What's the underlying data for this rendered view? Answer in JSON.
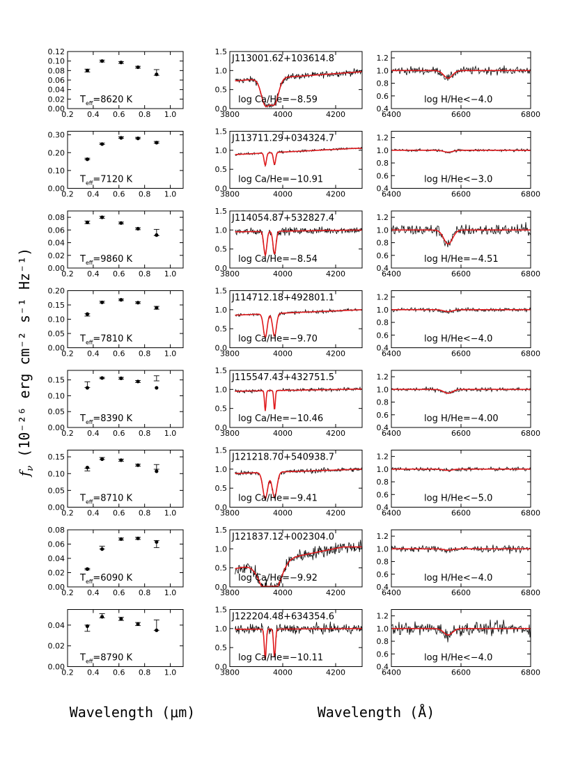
{
  "figure": {
    "y_label_prefix": "f",
    "y_label_sub": "ν",
    "y_label_units": "(10⁻²⁶ erg cm⁻² s⁻¹ Hz⁻¹)",
    "x_label_left": "Wavelength (μm)",
    "x_label_right": "Wavelength (Å)"
  },
  "colors": {
    "model": "#e0191c",
    "data": "#000000"
  },
  "chart_data": [
    {
      "type": "scatter",
      "panel": "photometry",
      "row": 1,
      "annotation": "Teff=8620 K",
      "teff": 8620,
      "xlim": [
        0.2,
        1.1
      ],
      "ylim": [
        0,
        0.12
      ],
      "xticks": [
        "0.2",
        "0.4",
        "0.6",
        "0.8",
        "1.0"
      ],
      "yticks": [
        "0.00",
        "0.02",
        "0.04",
        "0.06",
        "0.08",
        "0.10",
        "0.12"
      ],
      "points": [
        {
          "x": 0.354,
          "y": 0.08
        },
        {
          "x": 0.469,
          "y": 0.1
        },
        {
          "x": 0.617,
          "y": 0.097
        },
        {
          "x": 0.748,
          "y": 0.087
        },
        {
          "x": 0.893,
          "y": 0.072
        }
      ],
      "errorbars": [
        {
          "x": 0.354,
          "y": 0.08,
          "err": 0.003
        },
        {
          "x": 0.469,
          "y": 0.1,
          "err": 0.002
        },
        {
          "x": 0.617,
          "y": 0.097,
          "err": 0.002
        },
        {
          "x": 0.748,
          "y": 0.087,
          "err": 0.002
        },
        {
          "x": 0.893,
          "y": 0.076,
          "err": 0.006
        }
      ]
    },
    {
      "type": "line",
      "panel": "ca-region",
      "row": 1,
      "label": "J113001.62+103614.8",
      "annotation": "log Ca/He=−8.59",
      "xlim": [
        3800,
        4300
      ],
      "ylim": [
        0,
        1.5
      ],
      "xticks": [
        "3800",
        "4000",
        "4200"
      ],
      "yticks": [
        "0.0",
        "0.5",
        "1.0",
        "1.5"
      ],
      "line_depth": 0.85,
      "line_width": 22,
      "noise": 0.08,
      "slope": 0.25,
      "start": 0.72
    },
    {
      "type": "line",
      "panel": "h-alpha",
      "row": 1,
      "annotation": "log H/He<−4.0",
      "xlim": [
        6400,
        6800
      ],
      "ylim": [
        0.4,
        1.3
      ],
      "xticks": [
        "6400",
        "6600",
        "6800"
      ],
      "yticks": [
        "0.4",
        "0.6",
        "0.8",
        "1.0",
        "1.2"
      ],
      "line_depth": 0.12,
      "noise": 0.06
    },
    {
      "type": "scatter",
      "panel": "photometry",
      "row": 2,
      "annotation": "Teff=7120 K",
      "teff": 7120,
      "xlim": [
        0.2,
        1.1
      ],
      "ylim": [
        0,
        0.32
      ],
      "xticks": [
        "0.2",
        "0.4",
        "0.6",
        "0.8",
        "1.0"
      ],
      "yticks": [
        "0.00",
        "0.10",
        "0.20",
        "0.30"
      ],
      "points": [
        {
          "x": 0.354,
          "y": 0.163
        },
        {
          "x": 0.469,
          "y": 0.248
        },
        {
          "x": 0.617,
          "y": 0.283
        },
        {
          "x": 0.748,
          "y": 0.28
        },
        {
          "x": 0.893,
          "y": 0.256
        }
      ],
      "errorbars": [
        {
          "x": 0.354,
          "y": 0.165,
          "err": 0.004
        },
        {
          "x": 0.469,
          "y": 0.25,
          "err": 0.004
        },
        {
          "x": 0.617,
          "y": 0.285,
          "err": 0.004
        },
        {
          "x": 0.748,
          "y": 0.282,
          "err": 0.004
        },
        {
          "x": 0.893,
          "y": 0.258,
          "err": 0.005
        }
      ]
    },
    {
      "type": "line",
      "panel": "ca-region",
      "row": 2,
      "label": "J113711.29+034324.7",
      "annotation": "log Ca/He=−10.91",
      "xlim": [
        3800,
        4300
      ],
      "ylim": [
        0,
        1.5
      ],
      "xticks": [
        "3800",
        "4000",
        "4200"
      ],
      "yticks": [
        "0.0",
        "0.5",
        "1.0",
        "1.5"
      ],
      "line_depth": 0.35,
      "line_width": 6,
      "noise": 0.03,
      "slope": 0.18,
      "start": 0.88
    },
    {
      "type": "line",
      "panel": "h-alpha",
      "row": 2,
      "annotation": "log H/He<−3.0",
      "xlim": [
        6400,
        6800
      ],
      "ylim": [
        0.4,
        1.3
      ],
      "xticks": [
        "6400",
        "6600",
        "6800"
      ],
      "yticks": [
        "0.4",
        "0.6",
        "0.8",
        "1.0",
        "1.2"
      ],
      "line_depth": 0.03,
      "noise": 0.02
    },
    {
      "type": "scatter",
      "panel": "photometry",
      "row": 3,
      "annotation": "Teff=9860 K",
      "teff": 9860,
      "xlim": [
        0.2,
        1.1
      ],
      "ylim": [
        0,
        0.09
      ],
      "xticks": [
        "0.2",
        "0.4",
        "0.6",
        "0.8",
        "1.0"
      ],
      "yticks": [
        "0.00",
        "0.02",
        "0.04",
        "0.06",
        "0.08"
      ],
      "points": [
        {
          "x": 0.354,
          "y": 0.072
        },
        {
          "x": 0.469,
          "y": 0.08
        },
        {
          "x": 0.617,
          "y": 0.071
        },
        {
          "x": 0.748,
          "y": 0.062
        },
        {
          "x": 0.893,
          "y": 0.052
        }
      ],
      "errorbars": [
        {
          "x": 0.354,
          "y": 0.072,
          "err": 0.002
        },
        {
          "x": 0.469,
          "y": 0.08,
          "err": 0.0015
        },
        {
          "x": 0.617,
          "y": 0.071,
          "err": 0.0015
        },
        {
          "x": 0.748,
          "y": 0.062,
          "err": 0.0015
        },
        {
          "x": 0.893,
          "y": 0.056,
          "err": 0.005
        }
      ]
    },
    {
      "type": "line",
      "panel": "ca-region",
      "row": 3,
      "label": "J114054.87+532827.4",
      "annotation": "log Ca/He=−8.54",
      "xlim": [
        3800,
        4300
      ],
      "ylim": [
        0,
        1.5
      ],
      "xticks": [
        "3800",
        "4000",
        "4200"
      ],
      "yticks": [
        "0.0",
        "0.5",
        "1.0",
        "1.5"
      ],
      "line_depth": 0.65,
      "line_width": 8,
      "noise": 0.09,
      "slope": 0.05,
      "start": 0.95
    },
    {
      "type": "line",
      "panel": "h-alpha",
      "row": 3,
      "annotation": "log H/He=−4.51",
      "xlim": [
        6400,
        6800
      ],
      "ylim": [
        0.4,
        1.3
      ],
      "xticks": [
        "6400",
        "6600",
        "6800"
      ],
      "yticks": [
        "0.4",
        "0.6",
        "0.8",
        "1.0",
        "1.2"
      ],
      "line_depth": 0.22,
      "noise": 0.09
    },
    {
      "type": "scatter",
      "panel": "photometry",
      "row": 4,
      "annotation": "Teff=7810 K",
      "teff": 7810,
      "xlim": [
        0.2,
        1.1
      ],
      "ylim": [
        0,
        0.2
      ],
      "xticks": [
        "0.2",
        "0.4",
        "0.6",
        "0.8",
        "1.0"
      ],
      "yticks": [
        "0.00",
        "0.05",
        "0.10",
        "0.15",
        "0.20"
      ],
      "points": [
        {
          "x": 0.354,
          "y": 0.118
        },
        {
          "x": 0.469,
          "y": 0.159
        },
        {
          "x": 0.617,
          "y": 0.168
        },
        {
          "x": 0.748,
          "y": 0.158
        },
        {
          "x": 0.893,
          "y": 0.14
        }
      ],
      "errorbars": [
        {
          "x": 0.354,
          "y": 0.115,
          "err": 0.004
        },
        {
          "x": 0.469,
          "y": 0.16,
          "err": 0.003
        },
        {
          "x": 0.617,
          "y": 0.168,
          "err": 0.003
        },
        {
          "x": 0.748,
          "y": 0.158,
          "err": 0.003
        },
        {
          "x": 0.893,
          "y": 0.14,
          "err": 0.005
        }
      ]
    },
    {
      "type": "line",
      "panel": "ca-region",
      "row": 4,
      "label": "J114712.18+492801.1",
      "annotation": "log Ca/He=−9.70",
      "xlim": [
        3800,
        4300
      ],
      "ylim": [
        0,
        1.5
      ],
      "xticks": [
        "3800",
        "4000",
        "4200"
      ],
      "yticks": [
        "0.0",
        "0.5",
        "1.0",
        "1.5"
      ],
      "line_depth": 0.7,
      "line_width": 10,
      "noise": 0.04,
      "slope": 0.15,
      "start": 0.85
    },
    {
      "type": "line",
      "panel": "h-alpha",
      "row": 4,
      "annotation": "log H/He<−4.0",
      "xlim": [
        6400,
        6800
      ],
      "ylim": [
        0.4,
        1.3
      ],
      "xticks": [
        "6400",
        "6600",
        "6800"
      ],
      "yticks": [
        "0.4",
        "0.6",
        "0.8",
        "1.0",
        "1.2"
      ],
      "line_depth": 0.03,
      "noise": 0.03
    },
    {
      "type": "scatter",
      "panel": "photometry",
      "row": 5,
      "annotation": "Teff=8390 K",
      "teff": 8390,
      "xlim": [
        0.2,
        1.1
      ],
      "ylim": [
        0,
        0.18
      ],
      "xticks": [
        "0.2",
        "0.4",
        "0.6",
        "0.8",
        "1.0"
      ],
      "yticks": [
        "0.00",
        "0.05",
        "0.10",
        "0.15"
      ],
      "points": [
        {
          "x": 0.354,
          "y": 0.125
        },
        {
          "x": 0.469,
          "y": 0.156
        },
        {
          "x": 0.617,
          "y": 0.155
        },
        {
          "x": 0.748,
          "y": 0.145
        },
        {
          "x": 0.893,
          "y": 0.125
        }
      ],
      "errorbars": [
        {
          "x": 0.354,
          "y": 0.135,
          "err": 0.009
        },
        {
          "x": 0.469,
          "y": 0.156,
          "err": 0.002
        },
        {
          "x": 0.617,
          "y": 0.155,
          "err": 0.003
        },
        {
          "x": 0.748,
          "y": 0.145,
          "err": 0.003
        },
        {
          "x": 0.893,
          "y": 0.155,
          "err": 0.008
        }
      ]
    },
    {
      "type": "line",
      "panel": "ca-region",
      "row": 5,
      "label": "J115547.43+432751.5",
      "annotation": "log Ca/He=−10.46",
      "xlim": [
        3800,
        4300
      ],
      "ylim": [
        0,
        1.5
      ],
      "xticks": [
        "3800",
        "4000",
        "4200"
      ],
      "yticks": [
        "0.0",
        "0.5",
        "1.0",
        "1.5"
      ],
      "line_depth": 0.55,
      "line_width": 4,
      "noise": 0.04,
      "slope": 0.06,
      "start": 0.95
    },
    {
      "type": "line",
      "panel": "h-alpha",
      "row": 5,
      "annotation": "log H/He=−4.00",
      "xlim": [
        6400,
        6800
      ],
      "ylim": [
        0.4,
        1.3
      ],
      "xticks": [
        "6400",
        "6600",
        "6800"
      ],
      "yticks": [
        "0.4",
        "0.6",
        "0.8",
        "1.0",
        "1.2"
      ],
      "line_depth": 0.06,
      "noise": 0.03
    },
    {
      "type": "scatter",
      "panel": "photometry",
      "row": 6,
      "annotation": "Teff=8710 K",
      "teff": 8710,
      "xlim": [
        0.2,
        1.1
      ],
      "ylim": [
        0,
        0.17
      ],
      "xticks": [
        "0.2",
        "0.4",
        "0.6",
        "0.8",
        "1.0"
      ],
      "yticks": [
        "0.00",
        "0.05",
        "0.10",
        "0.15"
      ],
      "points": [
        {
          "x": 0.354,
          "y": 0.118
        },
        {
          "x": 0.469,
          "y": 0.143
        },
        {
          "x": 0.617,
          "y": 0.14
        },
        {
          "x": 0.748,
          "y": 0.125
        },
        {
          "x": 0.893,
          "y": 0.107
        }
      ],
      "errorbars": [
        {
          "x": 0.354,
          "y": 0.112,
          "err": 0.004
        },
        {
          "x": 0.469,
          "y": 0.145,
          "err": 0.003
        },
        {
          "x": 0.617,
          "y": 0.14,
          "err": 0.003
        },
        {
          "x": 0.748,
          "y": 0.125,
          "err": 0.003
        },
        {
          "x": 0.893,
          "y": 0.12,
          "err": 0.007
        }
      ]
    },
    {
      "type": "line",
      "panel": "ca-region",
      "row": 6,
      "label": "J121218.70+540938.7",
      "annotation": "log Ca/He=−9.41",
      "xlim": [
        3800,
        4300
      ],
      "ylim": [
        0,
        1.5
      ],
      "xticks": [
        "3800",
        "4000",
        "4200"
      ],
      "yticks": [
        "0.0",
        "0.5",
        "1.0",
        "1.5"
      ],
      "line_depth": 0.75,
      "line_width": 13,
      "noise": 0.06,
      "slope": 0.12,
      "start": 0.88
    },
    {
      "type": "line",
      "panel": "h-alpha",
      "row": 6,
      "annotation": "log H/He<−5.0",
      "xlim": [
        6400,
        6800
      ],
      "ylim": [
        0.4,
        1.3
      ],
      "xticks": [
        "6400",
        "6600",
        "6800"
      ],
      "yticks": [
        "0.4",
        "0.6",
        "0.8",
        "1.0",
        "1.2"
      ],
      "line_depth": 0.02,
      "noise": 0.03
    },
    {
      "type": "scatter",
      "panel": "photometry",
      "row": 7,
      "annotation": "Teff=6090 K",
      "teff": 6090,
      "xlim": [
        0.2,
        1.1
      ],
      "ylim": [
        0,
        0.08
      ],
      "xticks": [
        "0.2",
        "0.4",
        "0.6",
        "0.8",
        "1.0"
      ],
      "yticks": [
        "0.00",
        "0.02",
        "0.04",
        "0.06",
        "0.08"
      ],
      "points": [
        {
          "x": 0.354,
          "y": 0.025
        },
        {
          "x": 0.469,
          "y": 0.053
        },
        {
          "x": 0.617,
          "y": 0.067
        },
        {
          "x": 0.748,
          "y": 0.068
        },
        {
          "x": 0.893,
          "y": 0.063
        }
      ],
      "errorbars": [
        {
          "x": 0.354,
          "y": 0.025,
          "err": 0.001
        },
        {
          "x": 0.469,
          "y": 0.055,
          "err": 0.002
        },
        {
          "x": 0.617,
          "y": 0.067,
          "err": 0.0015
        },
        {
          "x": 0.748,
          "y": 0.068,
          "err": 0.0015
        },
        {
          "x": 0.893,
          "y": 0.06,
          "err": 0.005
        }
      ]
    },
    {
      "type": "line",
      "panel": "ca-region",
      "row": 7,
      "label": "J121837.12+002304.0",
      "annotation": "log Ca/He=−9.92",
      "xlim": [
        3800,
        4300
      ],
      "ylim": [
        0,
        1.5
      ],
      "xticks": [
        "3800",
        "4000",
        "4200"
      ],
      "yticks": [
        "0.0",
        "0.5",
        "1.0",
        "1.5"
      ],
      "line_depth": 0.9,
      "line_width": 40,
      "noise": 0.16,
      "slope": 0.7,
      "start": 0.45
    },
    {
      "type": "line",
      "panel": "h-alpha",
      "row": 7,
      "annotation": "log H/He<−4.0",
      "xlim": [
        6400,
        6800
      ],
      "ylim": [
        0.4,
        1.3
      ],
      "xticks": [
        "6400",
        "6600",
        "6800"
      ],
      "yticks": [
        "0.4",
        "0.6",
        "0.8",
        "1.0",
        "1.2"
      ],
      "line_depth": 0.02,
      "noise": 0.05
    },
    {
      "type": "scatter",
      "panel": "photometry",
      "row": 8,
      "annotation": "Teff=8790 K",
      "teff": 8790,
      "xlim": [
        0.2,
        1.1
      ],
      "ylim": [
        0,
        0.055
      ],
      "xticks": [
        "0.2",
        "0.4",
        "0.6",
        "0.8",
        "1.0"
      ],
      "yticks": [
        "0.00",
        "0.02",
        "0.04"
      ],
      "points": [
        {
          "x": 0.354,
          "y": 0.039
        },
        {
          "x": 0.469,
          "y": 0.048
        },
        {
          "x": 0.617,
          "y": 0.046
        },
        {
          "x": 0.748,
          "y": 0.041
        },
        {
          "x": 0.893,
          "y": 0.035
        }
      ],
      "errorbars": [
        {
          "x": 0.354,
          "y": 0.037,
          "err": 0.003
        },
        {
          "x": 0.469,
          "y": 0.049,
          "err": 0.002
        },
        {
          "x": 0.617,
          "y": 0.046,
          "err": 0.0015
        },
        {
          "x": 0.748,
          "y": 0.041,
          "err": 0.0015
        },
        {
          "x": 0.893,
          "y": 0.04,
          "err": 0.005
        }
      ]
    },
    {
      "type": "line",
      "panel": "ca-region",
      "row": 8,
      "label": "J122204.48+634354.6",
      "annotation": "log Ca/He=−10.11",
      "xlim": [
        3800,
        4300
      ],
      "ylim": [
        0,
        1.5
      ],
      "xticks": [
        "3800",
        "4000",
        "4200"
      ],
      "yticks": [
        "0.0",
        "0.5",
        "1.0",
        "1.5"
      ],
      "line_depth": 0.8,
      "line_width": 5,
      "noise": 0.12,
      "slope": 0.02,
      "start": 0.98
    },
    {
      "type": "line",
      "panel": "h-alpha",
      "row": 8,
      "annotation": "log H/He<−4.0",
      "xlim": [
        6400,
        6800
      ],
      "ylim": [
        0.4,
        1.3
      ],
      "xticks": [
        "6400",
        "6600",
        "6800"
      ],
      "yticks": [
        "0.4",
        "0.6",
        "0.8",
        "1.0",
        "1.2"
      ],
      "line_depth": 0.1,
      "noise": 0.1
    }
  ]
}
